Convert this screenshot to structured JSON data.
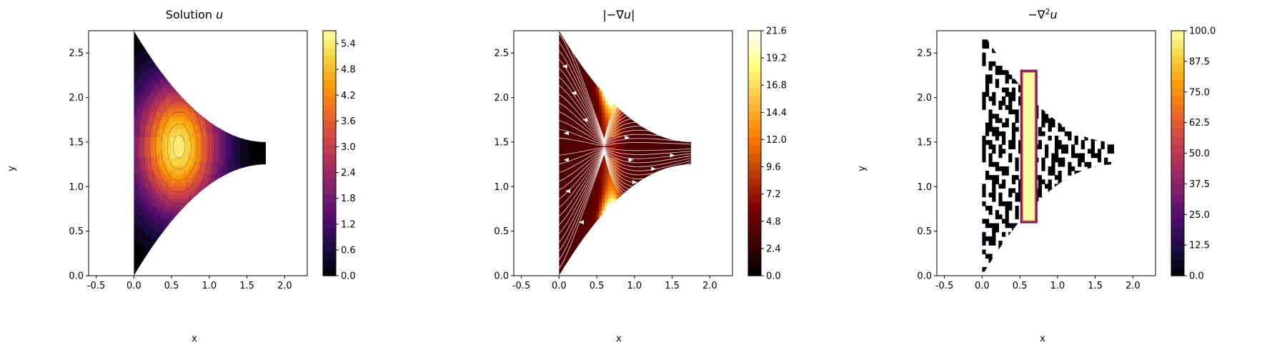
{
  "colors": {
    "inferno": [
      "#000004",
      "#1b0c41",
      "#4a0c6b",
      "#781c6d",
      "#a52c60",
      "#cf4446",
      "#ed6925",
      "#fb9b06",
      "#f7d13d",
      "#fcffa4"
    ],
    "afmhot": [
      "#000000",
      "#400000",
      "#800000",
      "#c04000",
      "#ff8000",
      "#ffc040",
      "#ffff80",
      "#ffffff"
    ],
    "streamline": "#ffffff",
    "contour_line": "#3a1a20"
  },
  "chart_data": [
    {
      "type": "heatmap",
      "title": "Solution u",
      "title_main": "Solution ",
      "title_var": "u",
      "xlabel": "x",
      "ylabel": "y",
      "xlim": [
        -0.6,
        2.3
      ],
      "ylim": [
        0.0,
        2.75
      ],
      "xticks": [
        "-0.5",
        "0.0",
        "0.5",
        "1.0",
        "1.5",
        "2.0"
      ],
      "xtick_values": [
        -0.5,
        0.0,
        0.5,
        1.0,
        1.5,
        2.0
      ],
      "yticks": [
        "0.0",
        "0.5",
        "1.0",
        "1.5",
        "2.0",
        "2.5"
      ],
      "ytick_values": [
        0.0,
        0.5,
        1.0,
        1.5,
        2.0,
        2.5
      ],
      "colormap": "inferno",
      "colorbar_range": [
        0.0,
        5.7
      ],
      "colorbar_ticks": [
        "0.0",
        "0.6",
        "1.2",
        "1.8",
        "2.4",
        "3.0",
        "3.6",
        "4.2",
        "4.8",
        "5.4"
      ],
      "colorbar_tick_values": [
        0.0,
        0.6,
        1.2,
        1.8,
        2.4,
        3.0,
        3.6,
        4.2,
        4.8,
        5.4
      ],
      "domain": {
        "x_left": 0.0,
        "x_right": 1.75,
        "left_y": [
          0.0,
          2.75
        ],
        "right_y": [
          1.25,
          1.75
        ]
      },
      "peak": {
        "x": 0.6,
        "y": 1.45,
        "value": 5.7
      }
    },
    {
      "type": "heatmap",
      "title": "|−∇u|",
      "title_main": "|−∇",
      "title_var": "u",
      "title_tail": "|",
      "xlabel": "x",
      "ylabel": "",
      "xlim": [
        -0.6,
        2.3
      ],
      "ylim": [
        0.0,
        2.75
      ],
      "xticks": [
        "-0.5",
        "0.0",
        "0.5",
        "1.0",
        "1.5",
        "2.0"
      ],
      "xtick_values": [
        -0.5,
        0.0,
        0.5,
        1.0,
        1.5,
        2.0
      ],
      "yticks": [
        "0.0",
        "0.5",
        "1.0",
        "1.5",
        "2.0",
        "2.5"
      ],
      "ytick_values": [
        0.0,
        0.5,
        1.0,
        1.5,
        2.0,
        2.5
      ],
      "colormap": "afmhot",
      "colorbar_range": [
        0.0,
        21.6
      ],
      "colorbar_ticks": [
        "0.0",
        "2.4",
        "4.8",
        "7.2",
        "9.6",
        "12.0",
        "14.4",
        "16.8",
        "19.2",
        "21.6"
      ],
      "colorbar_tick_values": [
        0.0,
        2.4,
        4.8,
        7.2,
        9.6,
        12.0,
        14.4,
        16.8,
        19.2,
        21.6
      ],
      "streamlines": true
    },
    {
      "type": "heatmap",
      "title": "−∇²u",
      "title_main": "−∇",
      "title_sup": "2",
      "title_var": "u",
      "xlabel": "x",
      "ylabel": "y",
      "xlim": [
        -0.6,
        2.3
      ],
      "ylim": [
        0.0,
        2.75
      ],
      "xticks": [
        "-0.5",
        "0.0",
        "0.5",
        "1.0",
        "1.5",
        "2.0"
      ],
      "xtick_values": [
        -0.5,
        0.0,
        0.5,
        1.0,
        1.5,
        2.0
      ],
      "yticks": [
        "0.0",
        "0.5",
        "1.0",
        "1.5",
        "2.0",
        "2.5"
      ],
      "ytick_values": [
        0.0,
        0.5,
        1.0,
        1.5,
        2.0,
        2.5
      ],
      "colormap": "inferno",
      "colorbar_range": [
        0.0,
        100.0
      ],
      "colorbar_ticks": [
        "0.0",
        "12.5",
        "25.0",
        "37.5",
        "50.0",
        "62.5",
        "75.0",
        "87.5",
        "100.0"
      ],
      "colorbar_tick_values": [
        0.0,
        12.5,
        25.0,
        37.5,
        50.0,
        62.5,
        75.0,
        87.5,
        100.0
      ],
      "source_strip": {
        "x": [
          0.52,
          0.72
        ],
        "y": [
          0.6,
          2.3
        ],
        "value": 100.0
      }
    }
  ]
}
